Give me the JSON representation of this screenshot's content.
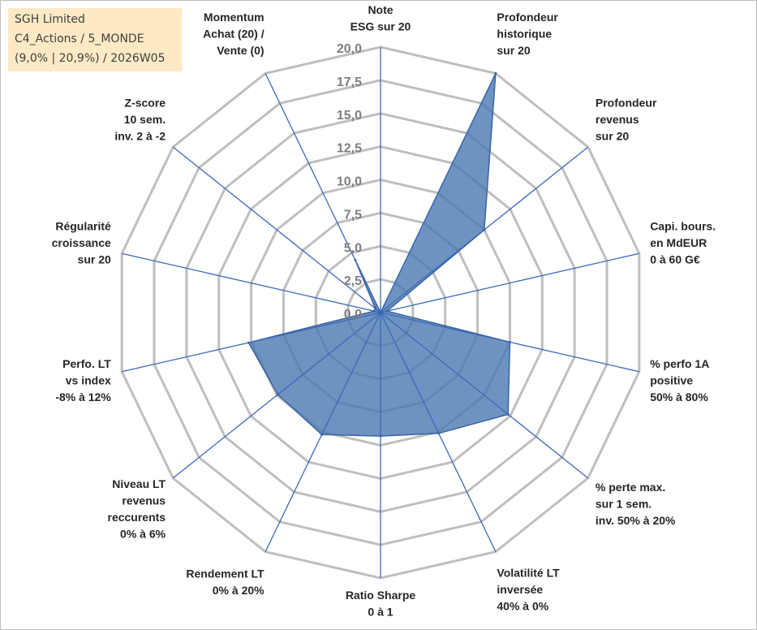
{
  "info_box": {
    "line1": "SGH Limited",
    "line2": "C4_Actions / 5_MONDE",
    "line3": "(9,0% | 20,9%) / 2026W05"
  },
  "colors": {
    "fill": "#4a78b2",
    "stroke": "#3a64a0",
    "grid": "#bfbfbf",
    "spoke": "#3a6ab8"
  },
  "chart_data": {
    "type": "radar",
    "rmax": 20,
    "ticks": [
      "0,0",
      "2,5",
      "5,0",
      "7,5",
      "10,0",
      "12,5",
      "15,0",
      "17,5",
      "20,0"
    ],
    "axes": [
      {
        "lines": [
          "Note",
          "ESG sur 20"
        ],
        "value": 0
      },
      {
        "lines": [
          "Profondeur",
          "historique",
          "sur 20"
        ],
        "value": 20
      },
      {
        "lines": [
          "Profondeur",
          "revenus",
          "sur 20"
        ],
        "value": 10
      },
      {
        "lines": [
          "Capi. bours.",
          "en MdEUR",
          "0 à 60 G€"
        ],
        "value": 0.5
      },
      {
        "lines": [
          "% perfo 1A",
          "positive",
          "50% à 80%"
        ],
        "value": 10
      },
      {
        "lines": [
          "% perte max.",
          "sur 1 sem.",
          "inv. 50% à 20%"
        ],
        "value": 12.3
      },
      {
        "lines": [
          "Volatilité LT",
          "inversée",
          "40% à 0%"
        ],
        "value": 10.1
      },
      {
        "lines": [
          "Ratio Sharpe",
          "0 à 1"
        ],
        "value": 9.3
      },
      {
        "lines": [
          "Rendement LT",
          "0% à 20%"
        ],
        "value": 10.2
      },
      {
        "lines": [
          "Niveau LT",
          "revenus",
          "reccurents",
          "0% à 6%"
        ],
        "value": 9.9
      },
      {
        "lines": [
          "Perfo. LT",
          "vs index",
          "-8% à 12%"
        ],
        "value": 10.2
      },
      {
        "lines": [
          "Régularité",
          "croissance",
          "sur 20"
        ],
        "value": 0.5
      },
      {
        "lines": [
          "Z-score",
          "10 sem.",
          "inv. 2 à -2"
        ],
        "value": 0.5
      },
      {
        "lines": [
          "Momentum",
          "Achat (20) /",
          "Vente (0)"
        ],
        "value": 4.4
      }
    ]
  }
}
